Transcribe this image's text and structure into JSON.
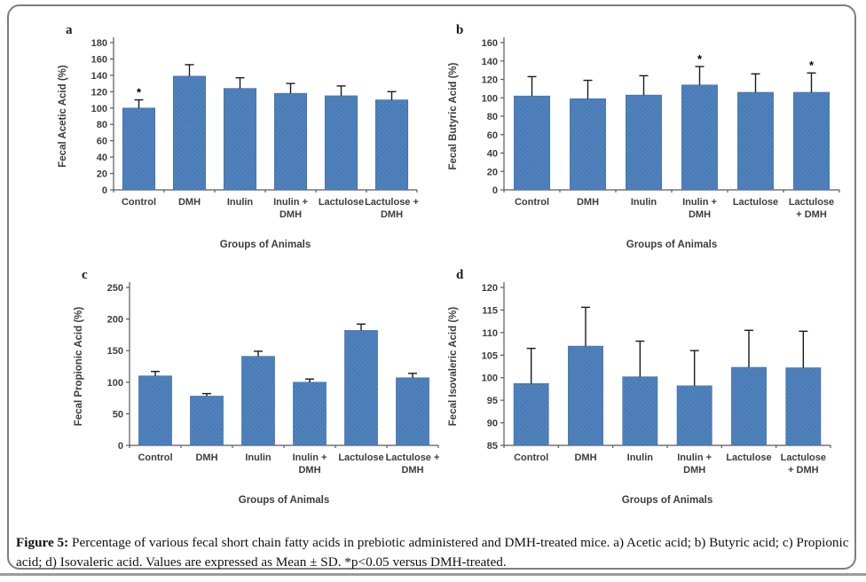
{
  "figure": {
    "caption_label": "Figure 5:",
    "caption_text": " Percentage of various fecal short chain fatty acids in prebiotic administered and DMH-treated mice. a) Acetic acid; b) Butyric acid; c) Propionic acid; d) Isovaleric acid. Values are expressed as Mean ± SD. *p<0.05 versus DMH-treated."
  },
  "chart_data": [
    {
      "id": "a",
      "type": "bar",
      "panel_label": "a",
      "ylabel": "Fecal Acetic Acid (%)",
      "xlabel": "Groups of Animals",
      "categories": [
        "Control",
        "DMH",
        "Inulin",
        "Inulin +\nDMH",
        "Lactulose",
        "Lactulose +\nDMH"
      ],
      "values": [
        100,
        139,
        124,
        118,
        115,
        110
      ],
      "errors": [
        10,
        14,
        13,
        12,
        12,
        10
      ],
      "significance": [
        "*",
        "",
        "",
        "",
        "",
        ""
      ],
      "ylim": [
        0,
        180
      ],
      "ytick_step": 20,
      "grid": false,
      "legend": "none",
      "bar_color": "#4f81bd"
    },
    {
      "id": "b",
      "type": "bar",
      "panel_label": "b",
      "ylabel": "Fecal Butyric Acid (%)",
      "xlabel": "Groups of Animals",
      "categories": [
        "Control",
        "DMH",
        "Inulin",
        "Inulin +\nDMH",
        "Lactulose",
        "Lactulose\n+ DMH"
      ],
      "values": [
        102,
        99,
        103,
        114,
        106,
        106
      ],
      "errors": [
        21,
        20,
        21,
        20,
        20,
        21
      ],
      "significance": [
        "",
        "",
        "",
        "*",
        "",
        "*"
      ],
      "ylim": [
        0,
        160
      ],
      "ytick_step": 20,
      "grid": false,
      "legend": "none",
      "bar_color": "#4f81bd"
    },
    {
      "id": "c",
      "type": "bar",
      "panel_label": "c",
      "ylabel": "Fecal Propionic Acid (%)",
      "xlabel": "Groups of Animals",
      "categories": [
        "Control",
        "DMH",
        "Inulin",
        "Inulin +\nDMH",
        "Lactulose",
        "Lactulose +\nDMH"
      ],
      "values": [
        110,
        78,
        141,
        100,
        182,
        107
      ],
      "errors": [
        7,
        4,
        8,
        5,
        10,
        7
      ],
      "significance": [
        "",
        "",
        "",
        "",
        "",
        ""
      ],
      "ylim": [
        0,
        250
      ],
      "ytick_step": 50,
      "grid": false,
      "legend": "none",
      "bar_color": "#4f81bd"
    },
    {
      "id": "d",
      "type": "bar",
      "panel_label": "d",
      "ylabel": "Fecal Isovaleric Acid (%)",
      "xlabel": "Groups of Animals",
      "categories": [
        "Control",
        "DMH",
        "Inulin",
        "Inulin +\nDMH",
        "Lactulose",
        "Lactulose\n+ DMH"
      ],
      "values": [
        98.7,
        107,
        100.2,
        98.2,
        102.3,
        102.2
      ],
      "errors": [
        7.8,
        8.6,
        7.9,
        7.8,
        8.2,
        8.1
      ],
      "significance": [
        "",
        "",
        "",
        "",
        "",
        ""
      ],
      "ylim": [
        85,
        120
      ],
      "ytick_step": 5,
      "grid": false,
      "legend": "none",
      "bar_color": "#4f81bd"
    }
  ]
}
